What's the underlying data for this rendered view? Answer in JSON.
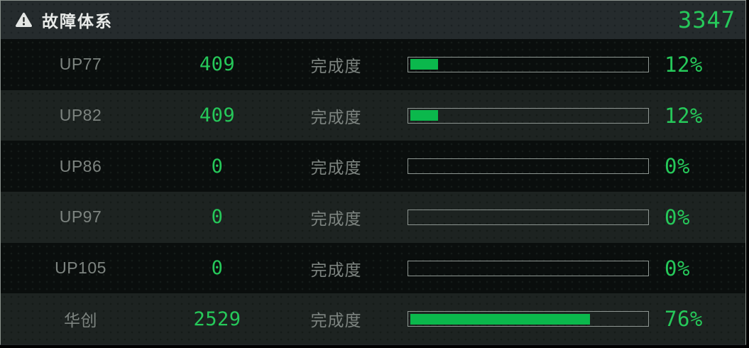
{
  "header": {
    "title": "故障体系",
    "total_value": "3347",
    "icon": "warning-triangle-icon"
  },
  "labels": {
    "progress": "完成度"
  },
  "rows": [
    {
      "label": "UP77",
      "value": "409",
      "percent": 12,
      "percent_display": "12%"
    },
    {
      "label": "UP82",
      "value": "409",
      "percent": 12,
      "percent_display": "12%"
    },
    {
      "label": "UP86",
      "value": "0",
      "percent": 0,
      "percent_display": "0%"
    },
    {
      "label": "UP97",
      "value": "0",
      "percent": 0,
      "percent_display": "0%"
    },
    {
      "label": "UP105",
      "value": "0",
      "percent": 0,
      "percent_display": "0%"
    },
    {
      "label": "华创",
      "value": "2529",
      "percent": 76,
      "percent_display": "76%"
    }
  ],
  "colors": {
    "green_text": "#26c95a",
    "green_bar_fill": "#0bb84c",
    "bar_border": "#8e9692",
    "label_gray": "#7d8480",
    "header_text": "#e8eae8",
    "panel_border": "#8d948f",
    "row_dark": "#0a0e0d",
    "row_light": "#1d2321",
    "header_bg": "#252b2d"
  }
}
